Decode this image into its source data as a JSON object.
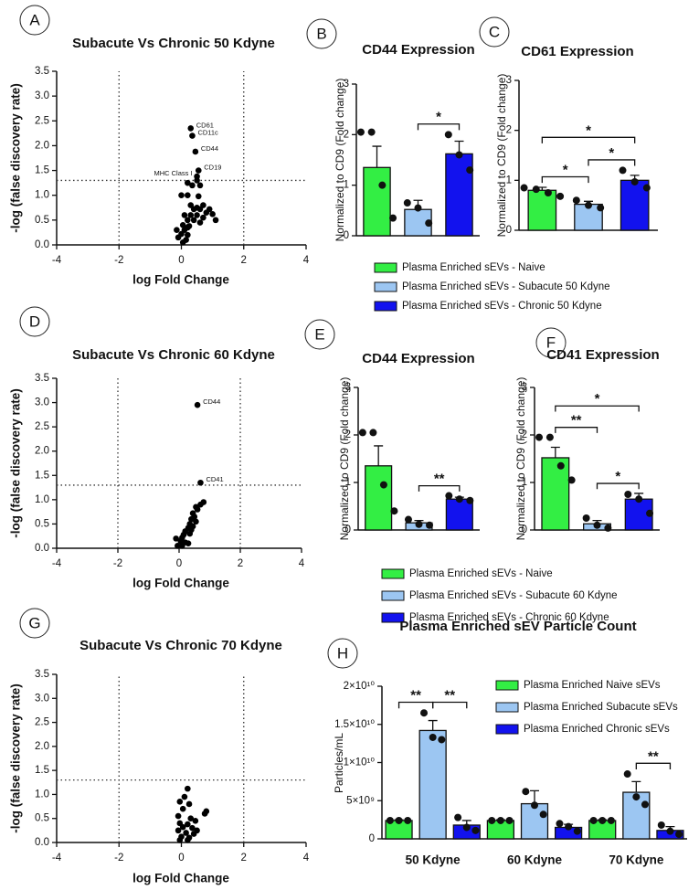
{
  "chart_data": [
    {
      "type": "scatter",
      "panel": "A",
      "title": "Subacute Vs Chronic 50 Kdyne",
      "x_label": "log Fold Change",
      "y_label": "-log (false discovery rate)",
      "xlim": [
        -4,
        4
      ],
      "xticks": [
        -4,
        -2,
        0,
        2,
        4
      ],
      "ylim": [
        0,
        3.5
      ],
      "yticks": [
        {
          "value": 0,
          "label": "0.0"
        },
        0.5,
        {
          "value": 1,
          "label": "1.0"
        },
        1.5,
        {
          "value": 2,
          "label": "2.0"
        },
        2.5,
        {
          "value": 3,
          "label": "3.0"
        },
        3.5
      ],
      "reference_lines": {
        "x": [
          -2,
          2
        ],
        "y": [
          1.3
        ]
      },
      "color": "#000000",
      "x": [
        0.3,
        0.35,
        0.45,
        0.55,
        0.5,
        0.5,
        0.2,
        0.35,
        0.6,
        0,
        0.2,
        0.55,
        0.7,
        0.3,
        0.5,
        0.4,
        0.6,
        0.9,
        1.0,
        0.8,
        0.1,
        0.3,
        0.5,
        0.7,
        0.2,
        0.4,
        0.05,
        0.25,
        -0.15,
        0.1,
        0,
        0.2,
        -0.1,
        0.15,
        0.05,
        0.2,
        0.6,
        1.1
      ],
      "values": [
        2.35,
        2.2,
        1.88,
        1.5,
        1.38,
        1.3,
        1.25,
        1.2,
        1.2,
        1.0,
        1.0,
        0.98,
        0.8,
        0.8,
        0.75,
        0.72,
        0.72,
        0.72,
        0.62,
        0.65,
        0.6,
        0.6,
        0.6,
        0.55,
        0.5,
        0.5,
        0.4,
        0.38,
        0.3,
        0.3,
        0.22,
        0.2,
        0.15,
        0.1,
        0.05,
        0.35,
        0.45,
        0.5
      ],
      "annotations": [
        {
          "label": "CD61",
          "point": 0
        },
        {
          "label": "CD11c",
          "point": 1
        },
        {
          "label": "CD44",
          "point": 2
        },
        {
          "label": "CD19",
          "point": 3
        },
        {
          "label": "MHC Class I",
          "point": 4
        }
      ]
    },
    {
      "type": "bar",
      "panel": "B",
      "title": "CD44 Expression",
      "y_label": "Normalized to CD9 (Fold change)",
      "ylim": [
        0,
        3
      ],
      "yticks": [
        0,
        1,
        2,
        3
      ],
      "categories": [
        null
      ],
      "series": [
        {
          "name": "Plasma Enriched sEVs - Naive",
          "color": "#33ee44",
          "values": [
            1.35
          ],
          "errors": [
            0.42
          ],
          "points": [
            [
              2.05,
              2.05,
              1.0,
              0.35
            ]
          ]
        },
        {
          "name": "Plasma Enriched sEVs - Subacute 50 Kdyne",
          "color": "#9cc6f2",
          "values": [
            0.52
          ],
          "errors": [
            0.18
          ],
          "points": [
            [
              0.65,
              0.55,
              0.25
            ]
          ]
        },
        {
          "name": "Plasma Enriched sEVs - Chronic 50 Kdyne",
          "color": "#1212ee",
          "values": [
            1.62
          ],
          "errors": [
            0.25
          ],
          "points": [
            [
              2.0,
              1.6,
              1.3
            ]
          ]
        }
      ],
      "significance": [
        {
          "category": 0,
          "from": 1,
          "to": 2,
          "label": "*"
        }
      ]
    },
    {
      "type": "bar",
      "panel": "C",
      "title": "CD61 Expression",
      "y_label": "Normalized to CD9 (Fold change)",
      "ylim": [
        0,
        3
      ],
      "yticks": [
        0,
        1,
        2,
        3
      ],
      "categories": [
        null
      ],
      "series": [
        {
          "color": "#33ee44",
          "values": [
            0.8
          ],
          "errors": [
            0.06
          ],
          "points": [
            [
              0.85,
              0.82,
              0.75,
              0.68
            ]
          ]
        },
        {
          "color": "#9cc6f2",
          "values": [
            0.52
          ],
          "errors": [
            0.06
          ],
          "points": [
            [
              0.6,
              0.5,
              0.45
            ]
          ]
        },
        {
          "color": "#1212ee",
          "values": [
            1.0
          ],
          "errors": [
            0.1
          ],
          "points": [
            [
              1.2,
              0.97,
              0.85
            ]
          ]
        }
      ],
      "significance": [
        {
          "category": 0,
          "from": 0,
          "to": 1,
          "label": "*"
        },
        {
          "category": 0,
          "from": 1,
          "to": 2,
          "label": "*"
        },
        {
          "category": 0,
          "from": 0,
          "to": 2,
          "label": "*"
        }
      ]
    },
    {
      "type": "scatter",
      "panel": "D",
      "title": "Subacute Vs Chronic 60 Kdyne",
      "x_label": "log Fold Change",
      "y_label": "-log (false discovery rate)",
      "xlim": [
        -4,
        4
      ],
      "xticks": [
        -4,
        -2,
        0,
        2,
        4
      ],
      "ylim": [
        0,
        3.5
      ],
      "yticks": [
        {
          "value": 0,
          "label": "0.0"
        },
        0.5,
        {
          "value": 1,
          "label": "1.0"
        },
        1.5,
        {
          "value": 2,
          "label": "2.0"
        },
        2.5,
        {
          "value": 3,
          "label": "3.0"
        },
        3.5
      ],
      "reference_lines": {
        "x": [
          -2,
          2
        ],
        "y": [
          1.3
        ]
      },
      "color": "#000000",
      "x": [
        0.6,
        0.7,
        0.8,
        0.7,
        0.55,
        0.6,
        0.45,
        0.5,
        0.4,
        0.55,
        0.35,
        0.45,
        0.3,
        0.2,
        0.35,
        0.15,
        0.1,
        -0.1,
        0.05,
        0.2,
        -0.05,
        0.3,
        0.1,
        0.4
      ],
      "values": [
        2.95,
        1.35,
        0.95,
        0.9,
        0.85,
        0.8,
        0.72,
        0.65,
        0.6,
        0.55,
        0.5,
        0.45,
        0.42,
        0.35,
        0.3,
        0.28,
        0.22,
        0.2,
        0.15,
        0.12,
        0.05,
        0.1,
        0.05,
        0.38
      ],
      "annotations": [
        {
          "label": "CD44",
          "point": 0
        },
        {
          "label": "CD41",
          "point": 1
        }
      ]
    },
    {
      "type": "bar",
      "panel": "E",
      "title": "CD44 Expression",
      "y_label": "Normalized to CD9 (Fold change)",
      "ylim": [
        0,
        3
      ],
      "yticks": [
        0,
        1,
        2,
        3
      ],
      "categories": [
        null
      ],
      "series": [
        {
          "name": "Plasma Enriched sEVs - Naive",
          "color": "#33ee44",
          "values": [
            1.35
          ],
          "errors": [
            0.42
          ],
          "points": [
            [
              2.05,
              2.05,
              0.95,
              0.4
            ]
          ]
        },
        {
          "name": "Plasma Enriched sEVs - Subacute 60 Kdyne",
          "color": "#9cc6f2",
          "values": [
            0.15
          ],
          "errors": [
            0.05
          ],
          "points": [
            [
              0.22,
              0.12,
              0.1
            ]
          ]
        },
        {
          "name": "Plasma Enriched sEVs - Chronic 60 Kdyne",
          "color": "#1212ee",
          "values": [
            0.65
          ],
          "errors": [
            0.04
          ],
          "points": [
            [
              0.72,
              0.65,
              0.62
            ]
          ]
        }
      ],
      "significance": [
        {
          "category": 0,
          "from": 1,
          "to": 2,
          "label": "**"
        }
      ]
    },
    {
      "type": "bar",
      "panel": "F",
      "title": "CD41 Expression",
      "y_label": "Normalized to CD9 (Fold change)",
      "ylim": [
        0,
        3
      ],
      "yticks": [
        0,
        1,
        2,
        3
      ],
      "categories": [
        null
      ],
      "series": [
        {
          "color": "#33ee44",
          "values": [
            1.52
          ],
          "errors": [
            0.22
          ],
          "points": [
            [
              1.95,
              1.95,
              1.35,
              1.05
            ]
          ]
        },
        {
          "color": "#9cc6f2",
          "values": [
            0.13
          ],
          "errors": [
            0.07
          ],
          "points": [
            [
              0.25,
              0.1,
              0.04
            ]
          ]
        },
        {
          "color": "#1212ee",
          "values": [
            0.65
          ],
          "errors": [
            0.12
          ],
          "points": [
            [
              0.75,
              0.65,
              0.35
            ]
          ]
        }
      ],
      "significance": [
        {
          "category": 0,
          "from": 0,
          "to": 1,
          "label": "**"
        },
        {
          "category": 0,
          "from": 1,
          "to": 2,
          "label": "*"
        },
        {
          "category": 0,
          "from": 0,
          "to": 2,
          "label": "*"
        }
      ]
    },
    {
      "type": "scatter",
      "panel": "G",
      "title": "Subacute Vs Chronic 70 Kdyne",
      "x_label": "log Fold Change",
      "y_label": "-log (false discovery rate)",
      "xlim": [
        -4,
        4
      ],
      "xticks": [
        -4,
        -2,
        0,
        2,
        4
      ],
      "ylim": [
        0,
        3.5
      ],
      "yticks": [
        {
          "value": 0,
          "label": "0.0"
        },
        0.5,
        {
          "value": 1,
          "label": "1.0"
        },
        1.5,
        {
          "value": 2,
          "label": "2.0"
        },
        2.5,
        {
          "value": 3,
          "label": "3.0"
        },
        3.5
      ],
      "reference_lines": {
        "x": [
          -2,
          2
        ],
        "y": [
          1.3
        ]
      },
      "color": "#000000",
      "x": [
        0.2,
        0.1,
        -0.05,
        0.25,
        0.05,
        0.8,
        0.75,
        -0.1,
        0.3,
        0.45,
        -0.05,
        0.2,
        0.05,
        0.35,
        -0.1,
        0.15,
        0.4,
        0,
        0.25,
        -0.05,
        0.2,
        0.5
      ],
      "values": [
        1.12,
        0.95,
        0.85,
        0.8,
        0.7,
        0.65,
        0.6,
        0.55,
        0.5,
        0.45,
        0.4,
        0.38,
        0.32,
        0.3,
        0.25,
        0.2,
        0.18,
        0.12,
        0.1,
        0.05,
        0.05,
        0.25
      ],
      "annotations": []
    },
    {
      "type": "bar",
      "panel": "H",
      "title": "Plasma Enriched sEV Particle Count",
      "y_label": "Particles/mL",
      "ylim": [
        0,
        20000000000
      ],
      "yticks": [
        0,
        {
          "value": 5000000000,
          "label": "5×10⁹"
        },
        {
          "value": 10000000000,
          "label": "1×10¹⁰"
        },
        {
          "value": 15000000000,
          "label": "1.5×10¹⁰"
        },
        {
          "value": 20000000000,
          "label": "2×10¹⁰"
        }
      ],
      "categories": [
        "50 Kdyne",
        "60 Kdyne",
        "70 Kdyne"
      ],
      "series": [
        {
          "name": "Plasma Enriched Naive sEVs",
          "color": "#33ee44",
          "values": [
            2400000000,
            2400000000,
            2400000000
          ],
          "errors": [
            100000000,
            100000000,
            100000000
          ],
          "points": [
            [
              2400000000,
              2400000000,
              2400000000
            ],
            [
              2400000000,
              2400000000,
              2400000000
            ],
            [
              2400000000,
              2400000000,
              2400000000
            ]
          ]
        },
        {
          "name": "Plasma Enriched Subacute sEVs",
          "color": "#9cc6f2",
          "values": [
            14200000000,
            4600000000,
            6100000000
          ],
          "errors": [
            1300000000,
            1700000000,
            1400000000
          ],
          "points": [
            [
              16500000000,
              13300000000,
              13000000000
            ],
            [
              6200000000,
              4400000000,
              3200000000
            ],
            [
              8500000000,
              5500000000,
              4500000000
            ]
          ]
        },
        {
          "name": "Plasma Enriched Chronic sEVs",
          "color": "#1212ee",
          "values": [
            1800000000,
            1500000000,
            1100000000
          ],
          "errors": [
            600000000,
            400000000,
            500000000
          ],
          "points": [
            [
              2800000000,
              1500000000,
              1100000000
            ],
            [
              2000000000,
              1600000000,
              1000000000
            ],
            [
              1800000000,
              1000000000,
              600000000
            ]
          ]
        }
      ],
      "significance": [
        {
          "category": 0,
          "from": 0,
          "to": 1,
          "label": "**"
        },
        {
          "category": 0,
          "from": 1,
          "to": 2,
          "label": "**"
        },
        {
          "category": 2,
          "from": 1,
          "to": 2,
          "label": "**"
        }
      ]
    }
  ]
}
